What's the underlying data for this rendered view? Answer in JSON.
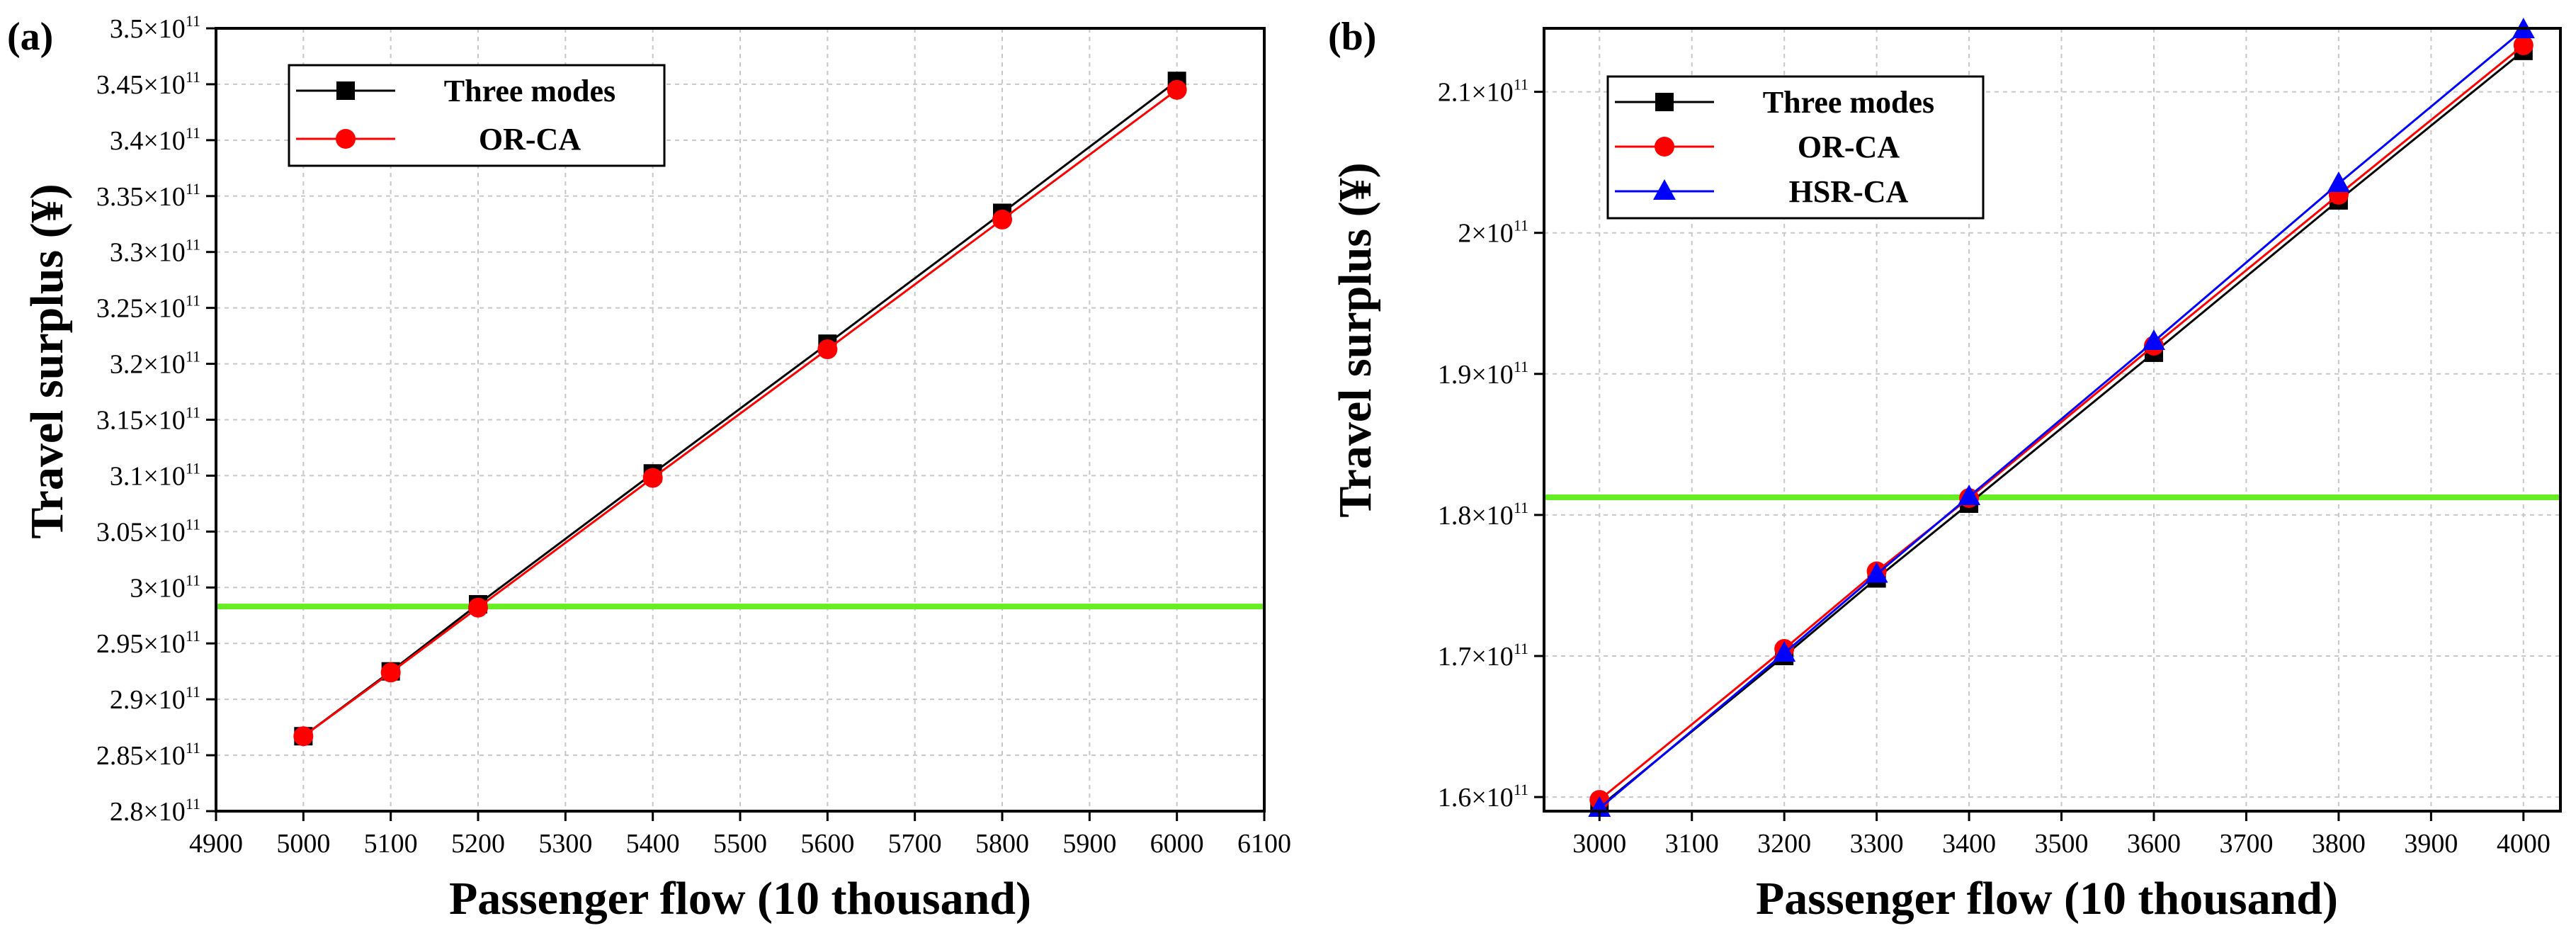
{
  "chart_data": [
    {
      "panel": "(a)",
      "type": "line",
      "xlabel": "Passenger flow (10 thousand)",
      "ylabel": "Travel surplus (¥)",
      "xlim": [
        4900,
        6100
      ],
      "ylim": [
        280000000000.0,
        350000000000.0
      ],
      "x_ticks": [
        4900,
        5000,
        5100,
        5200,
        5300,
        5400,
        5500,
        5600,
        5700,
        5800,
        5900,
        6000,
        6100
      ],
      "y_ticks": [
        {
          "value": 280000000000.0,
          "mantissa": "2.8×10",
          "exp": "11"
        },
        {
          "value": 285000000000.0,
          "mantissa": "2.85×10",
          "exp": "11"
        },
        {
          "value": 290000000000.0,
          "mantissa": "2.9×10",
          "exp": "11"
        },
        {
          "value": 295000000000.0,
          "mantissa": "2.95×10",
          "exp": "11"
        },
        {
          "value": 300000000000.0,
          "mantissa": "3×10",
          "exp": "11"
        },
        {
          "value": 305000000000.0,
          "mantissa": "3.05×10",
          "exp": "11"
        },
        {
          "value": 310000000000.0,
          "mantissa": "3.1×10",
          "exp": "11"
        },
        {
          "value": 315000000000.0,
          "mantissa": "3.15×10",
          "exp": "11"
        },
        {
          "value": 320000000000.0,
          "mantissa": "3.2×10",
          "exp": "11"
        },
        {
          "value": 325000000000.0,
          "mantissa": "3.25×10",
          "exp": "11"
        },
        {
          "value": 330000000000.0,
          "mantissa": "3.3×10",
          "exp": "11"
        },
        {
          "value": 335000000000.0,
          "mantissa": "3.35×10",
          "exp": "11"
        },
        {
          "value": 340000000000.0,
          "mantissa": "3.4×10",
          "exp": "11"
        },
        {
          "value": 345000000000.0,
          "mantissa": "3.45×10",
          "exp": "11"
        },
        {
          "value": 350000000000.0,
          "mantissa": "3.5×10",
          "exp": "11"
        }
      ],
      "grid": true,
      "legend_position": "top-left",
      "reference_line": {
        "y": 298300000000.0,
        "color": "#66ee22"
      },
      "series": [
        {
          "name": "Three modes",
          "color": "#000000",
          "marker": "square",
          "x": [
            5000,
            5100,
            5200,
            5400,
            5600,
            5800,
            6000
          ],
          "y": [
            286700000000.0,
            292500000000.0,
            298500000000.0,
            310200000000.0,
            321800000000.0,
            333500000000.0,
            345300000000.0
          ]
        },
        {
          "name": "OR-CA",
          "color": "#ff0000",
          "marker": "circle",
          "x": [
            5000,
            5100,
            5200,
            5400,
            5600,
            5800,
            6000
          ],
          "y": [
            286700000000.0,
            292400000000.0,
            298200000000.0,
            309800000000.0,
            321300000000.0,
            332900000000.0,
            344500000000.0
          ]
        }
      ]
    },
    {
      "panel": "(b)",
      "type": "line",
      "xlabel": "Passenger flow (10 thousand)",
      "ylabel": "Travel surplus (¥)",
      "xlim": [
        2940,
        4040
      ],
      "ylim": [
        159000000000.0,
        214500000000.0
      ],
      "x_ticks": [
        3000,
        3100,
        3200,
        3300,
        3400,
        3500,
        3600,
        3700,
        3800,
        3900,
        4000
      ],
      "y_ticks": [
        {
          "value": 160000000000.0,
          "mantissa": "1.6×10",
          "exp": "11"
        },
        {
          "value": 170000000000.0,
          "mantissa": "1.7×10",
          "exp": "11"
        },
        {
          "value": 180000000000.0,
          "mantissa": "1.8×10",
          "exp": "11"
        },
        {
          "value": 190000000000.0,
          "mantissa": "1.9×10",
          "exp": "11"
        },
        {
          "value": 200000000000.0,
          "mantissa": "2×10",
          "exp": "11"
        },
        {
          "value": 210000000000.0,
          "mantissa": "2.1×10",
          "exp": "11"
        }
      ],
      "grid": true,
      "legend_position": "top-left",
      "reference_line": {
        "y": 181250000000.0,
        "color": "#66ee22"
      },
      "series": [
        {
          "name": "Three modes",
          "color": "#000000",
          "marker": "square",
          "x": [
            3000,
            3200,
            3300,
            3400,
            3600,
            3800,
            4000
          ],
          "y": [
            159300000000.0,
            170000000000.0,
            175500000000.0,
            180800000000.0,
            191500000000.0,
            202300000000.0,
            212900000000.0
          ]
        },
        {
          "name": "OR-CA",
          "color": "#ff0000",
          "marker": "circle",
          "x": [
            3000,
            3200,
            3300,
            3400,
            3600,
            3800,
            4000
          ],
          "y": [
            159800000000.0,
            170500000000.0,
            176000000000.0,
            181200000000.0,
            192000000000.0,
            202700000000.0,
            213300000000.0
          ]
        },
        {
          "name": "HSR-CA",
          "color": "#0000ff",
          "marker": "triangle",
          "x": [
            3000,
            3200,
            3300,
            3400,
            3600,
            3800,
            4000
          ],
          "y": [
            159200000000.0,
            170200000000.0,
            175800000000.0,
            181300000000.0,
            192300000000.0,
            203500000000.0,
            214400000000.0
          ]
        }
      ]
    }
  ]
}
